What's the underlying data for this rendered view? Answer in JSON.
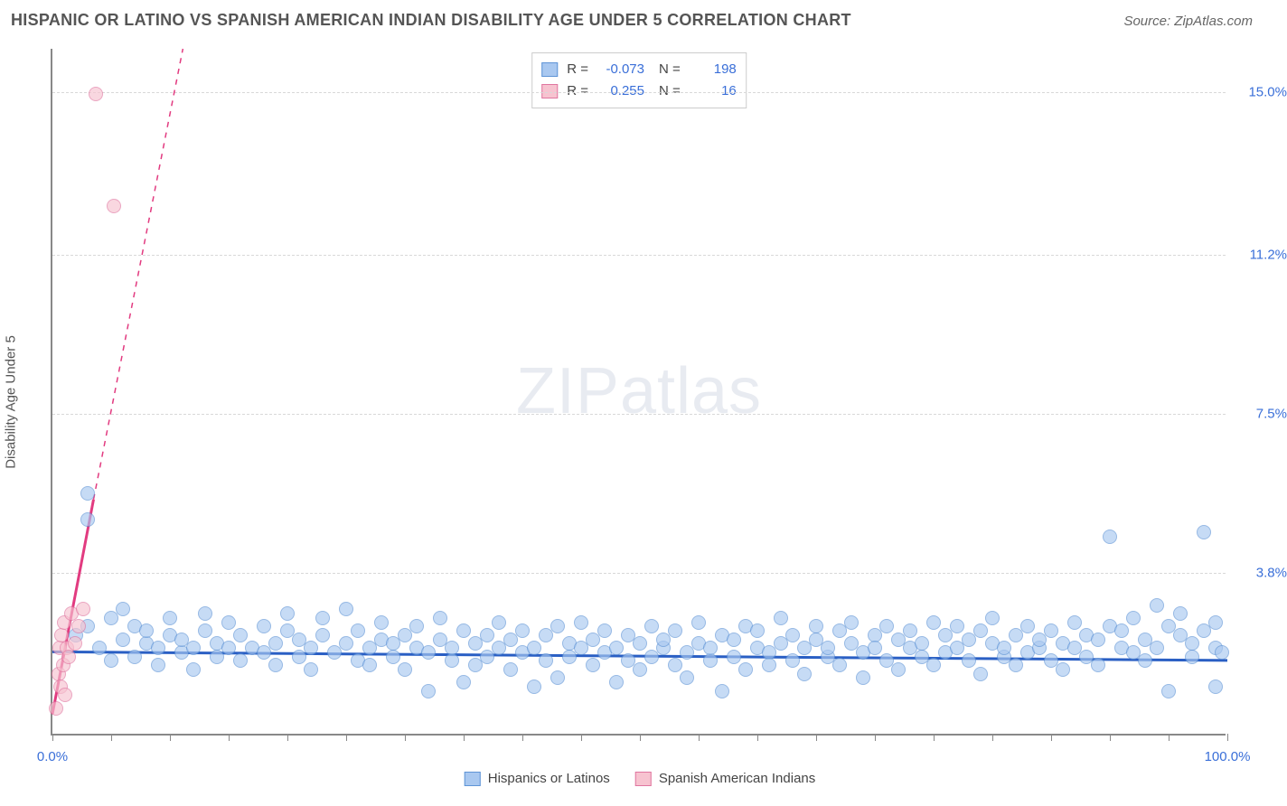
{
  "title": "HISPANIC OR LATINO VS SPANISH AMERICAN INDIAN DISABILITY AGE UNDER 5 CORRELATION CHART",
  "source": "Source: ZipAtlas.com",
  "ylabel": "Disability Age Under 5",
  "watermark_bold": "ZIP",
  "watermark_light": "atlas",
  "xaxis": {
    "min": 0,
    "max": 100,
    "tick_step": 5,
    "labels": [
      {
        "x": 0,
        "text": "0.0%"
      },
      {
        "x": 100,
        "text": "100.0%"
      }
    ]
  },
  "yaxis": {
    "min": 0,
    "max": 16,
    "grid": [
      3.8,
      7.5,
      11.2,
      15.0
    ],
    "labels": [
      "3.8%",
      "7.5%",
      "11.2%",
      "15.0%"
    ],
    "label_color": "#3a6fd8",
    "grid_color": "#d8d8d8"
  },
  "series": [
    {
      "name": "Hispanics or Latinos",
      "fill": "#a9c8f0",
      "stroke": "#5f94d6",
      "marker_r": 8,
      "opacity": 0.65,
      "R": "-0.073",
      "N": "198",
      "trend": {
        "x1": 0,
        "y1": 1.95,
        "x2": 100,
        "y2": 1.75,
        "color": "#2a5fc4",
        "width": 3,
        "dash": ""
      },
      "points": [
        [
          2,
          2.3
        ],
        [
          3,
          2.5
        ],
        [
          3,
          5.6
        ],
        [
          3,
          5.0
        ],
        [
          4,
          2.0
        ],
        [
          5,
          2.7
        ],
        [
          5,
          1.7
        ],
        [
          6,
          2.2
        ],
        [
          6,
          2.9
        ],
        [
          7,
          2.5
        ],
        [
          7,
          1.8
        ],
        [
          8,
          2.1
        ],
        [
          8,
          2.4
        ],
        [
          9,
          2.0
        ],
        [
          9,
          1.6
        ],
        [
          10,
          2.3
        ],
        [
          10,
          2.7
        ],
        [
          11,
          1.9
        ],
        [
          11,
          2.2
        ],
        [
          12,
          2.0
        ],
        [
          12,
          1.5
        ],
        [
          13,
          2.4
        ],
        [
          13,
          2.8
        ],
        [
          14,
          1.8
        ],
        [
          14,
          2.1
        ],
        [
          15,
          2.0
        ],
        [
          15,
          2.6
        ],
        [
          16,
          1.7
        ],
        [
          16,
          2.3
        ],
        [
          17,
          2.0
        ],
        [
          18,
          1.9
        ],
        [
          18,
          2.5
        ],
        [
          19,
          2.1
        ],
        [
          19,
          1.6
        ],
        [
          20,
          2.4
        ],
        [
          20,
          2.8
        ],
        [
          21,
          1.8
        ],
        [
          21,
          2.2
        ],
        [
          22,
          2.0
        ],
        [
          22,
          1.5
        ],
        [
          23,
          2.3
        ],
        [
          23,
          2.7
        ],
        [
          24,
          1.9
        ],
        [
          25,
          2.1
        ],
        [
          25,
          2.9
        ],
        [
          26,
          1.7
        ],
        [
          26,
          2.4
        ],
        [
          27,
          2.0
        ],
        [
          27,
          1.6
        ],
        [
          28,
          2.2
        ],
        [
          28,
          2.6
        ],
        [
          29,
          1.8
        ],
        [
          29,
          2.1
        ],
        [
          30,
          2.3
        ],
        [
          30,
          1.5
        ],
        [
          31,
          2.0
        ],
        [
          31,
          2.5
        ],
        [
          32,
          1.0
        ],
        [
          32,
          1.9
        ],
        [
          33,
          2.2
        ],
        [
          33,
          2.7
        ],
        [
          34,
          1.7
        ],
        [
          34,
          2.0
        ],
        [
          35,
          2.4
        ],
        [
          35,
          1.2
        ],
        [
          36,
          1.6
        ],
        [
          36,
          2.1
        ],
        [
          37,
          2.3
        ],
        [
          37,
          1.8
        ],
        [
          38,
          2.0
        ],
        [
          38,
          2.6
        ],
        [
          39,
          1.5
        ],
        [
          39,
          2.2
        ],
        [
          40,
          2.4
        ],
        [
          40,
          1.9
        ],
        [
          41,
          1.1
        ],
        [
          41,
          2.0
        ],
        [
          42,
          2.3
        ],
        [
          42,
          1.7
        ],
        [
          43,
          2.5
        ],
        [
          43,
          1.3
        ],
        [
          44,
          2.1
        ],
        [
          44,
          1.8
        ],
        [
          45,
          2.0
        ],
        [
          45,
          2.6
        ],
        [
          46,
          1.6
        ],
        [
          46,
          2.2
        ],
        [
          47,
          1.9
        ],
        [
          47,
          2.4
        ],
        [
          48,
          1.2
        ],
        [
          48,
          2.0
        ],
        [
          49,
          2.3
        ],
        [
          49,
          1.7
        ],
        [
          50,
          2.1
        ],
        [
          50,
          1.5
        ],
        [
          51,
          2.5
        ],
        [
          51,
          1.8
        ],
        [
          52,
          2.0
        ],
        [
          52,
          2.2
        ],
        [
          53,
          1.6
        ],
        [
          53,
          2.4
        ],
        [
          54,
          1.9
        ],
        [
          54,
          1.3
        ],
        [
          55,
          2.1
        ],
        [
          55,
          2.6
        ],
        [
          56,
          1.7
        ],
        [
          56,
          2.0
        ],
        [
          57,
          2.3
        ],
        [
          57,
          1.0
        ],
        [
          58,
          1.8
        ],
        [
          58,
          2.2
        ],
        [
          59,
          2.5
        ],
        [
          59,
          1.5
        ],
        [
          60,
          2.0
        ],
        [
          60,
          2.4
        ],
        [
          61,
          1.9
        ],
        [
          61,
          1.6
        ],
        [
          62,
          2.1
        ],
        [
          62,
          2.7
        ],
        [
          63,
          1.7
        ],
        [
          63,
          2.3
        ],
        [
          64,
          2.0
        ],
        [
          64,
          1.4
        ],
        [
          65,
          2.2
        ],
        [
          65,
          2.5
        ],
        [
          66,
          1.8
        ],
        [
          66,
          2.0
        ],
        [
          67,
          2.4
        ],
        [
          67,
          1.6
        ],
        [
          68,
          2.1
        ],
        [
          68,
          2.6
        ],
        [
          69,
          1.9
        ],
        [
          69,
          1.3
        ],
        [
          70,
          2.3
        ],
        [
          70,
          2.0
        ],
        [
          71,
          1.7
        ],
        [
          71,
          2.5
        ],
        [
          72,
          2.2
        ],
        [
          72,
          1.5
        ],
        [
          73,
          2.0
        ],
        [
          73,
          2.4
        ],
        [
          74,
          1.8
        ],
        [
          74,
          2.1
        ],
        [
          75,
          2.6
        ],
        [
          75,
          1.6
        ],
        [
          76,
          2.3
        ],
        [
          76,
          1.9
        ],
        [
          77,
          2.0
        ],
        [
          77,
          2.5
        ],
        [
          78,
          1.7
        ],
        [
          78,
          2.2
        ],
        [
          79,
          2.4
        ],
        [
          79,
          1.4
        ],
        [
          80,
          2.1
        ],
        [
          80,
          2.7
        ],
        [
          81,
          1.8
        ],
        [
          81,
          2.0
        ],
        [
          82,
          2.3
        ],
        [
          82,
          1.6
        ],
        [
          83,
          2.5
        ],
        [
          83,
          1.9
        ],
        [
          84,
          2.0
        ],
        [
          84,
          2.2
        ],
        [
          85,
          1.7
        ],
        [
          85,
          2.4
        ],
        [
          86,
          2.1
        ],
        [
          86,
          1.5
        ],
        [
          87,
          2.6
        ],
        [
          87,
          2.0
        ],
        [
          88,
          1.8
        ],
        [
          88,
          2.3
        ],
        [
          89,
          2.2
        ],
        [
          89,
          1.6
        ],
        [
          90,
          2.5
        ],
        [
          90,
          4.6
        ],
        [
          91,
          2.0
        ],
        [
          91,
          2.4
        ],
        [
          92,
          1.9
        ],
        [
          92,
          2.7
        ],
        [
          93,
          1.7
        ],
        [
          93,
          2.2
        ],
        [
          94,
          2.0
        ],
        [
          94,
          3.0
        ],
        [
          95,
          2.5
        ],
        [
          95,
          1.0
        ],
        [
          96,
          2.3
        ],
        [
          96,
          2.8
        ],
        [
          97,
          1.8
        ],
        [
          97,
          2.1
        ],
        [
          98,
          4.7
        ],
        [
          98,
          2.4
        ],
        [
          99,
          2.0
        ],
        [
          99,
          2.6
        ],
        [
          99,
          1.1
        ],
        [
          99.5,
          1.9
        ]
      ]
    },
    {
      "name": "Spanish American Indians",
      "fill": "#f7c3d0",
      "stroke": "#e076a0",
      "marker_r": 8,
      "opacity": 0.65,
      "R": "0.255",
      "N": "16",
      "trend": {
        "x1": 0,
        "y1": 0.5,
        "x2": 3.5,
        "y2": 5.5,
        "color": "#e23b80",
        "width": 3,
        "dash": "",
        "extend": {
          "x1": 3.5,
          "y1": 5.5,
          "x2": 14,
          "y2": 20,
          "dash": "6 6",
          "width": 1.5
        }
      },
      "points": [
        [
          0.3,
          0.6
        ],
        [
          0.5,
          1.4
        ],
        [
          0.6,
          2.0
        ],
        [
          0.7,
          1.1
        ],
        [
          0.8,
          2.3
        ],
        [
          0.9,
          1.6
        ],
        [
          1.0,
          2.6
        ],
        [
          1.1,
          0.9
        ],
        [
          1.2,
          2.0
        ],
        [
          1.4,
          1.8
        ],
        [
          1.6,
          2.8
        ],
        [
          1.9,
          2.1
        ],
        [
          2.2,
          2.5
        ],
        [
          2.6,
          2.9
        ],
        [
          3.7,
          14.9
        ],
        [
          5.2,
          12.3
        ]
      ]
    }
  ],
  "colors": {
    "axis": "#888888",
    "text": "#555555",
    "background": "#ffffff"
  }
}
